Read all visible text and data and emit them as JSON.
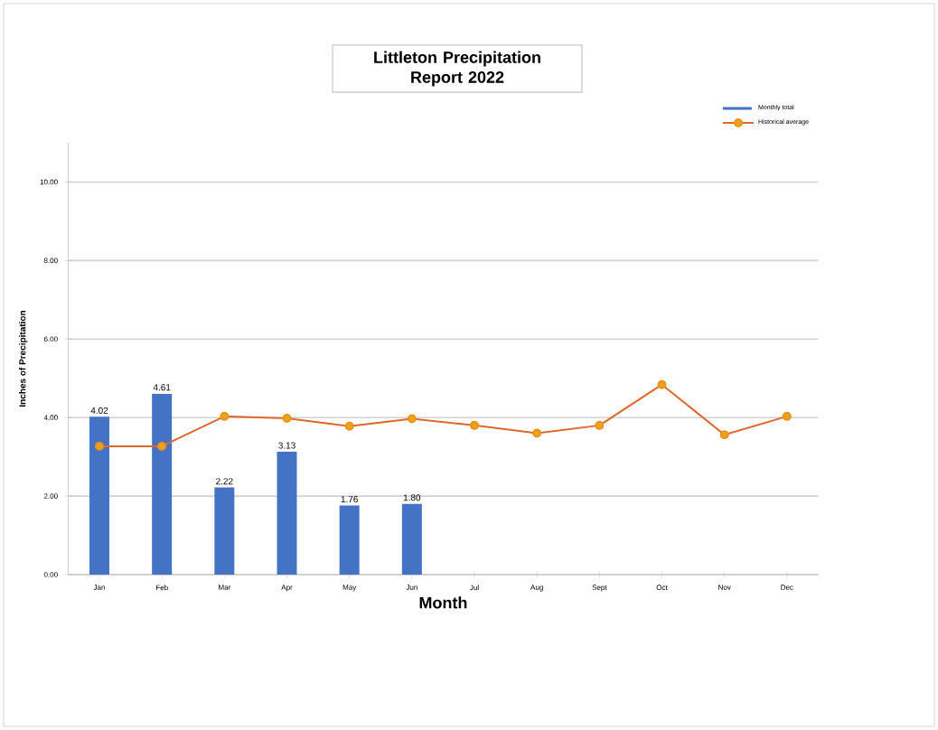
{
  "chart_data": {
    "type": "bar",
    "title": "Littleton Precipitation Report 2022",
    "xlabel": "Month",
    "ylabel": "Inches of Precipitation",
    "categories": [
      "Jan",
      "Feb",
      "Mar",
      "Apr",
      "May",
      "Jun",
      "Jul",
      "Aug",
      "Sept",
      "Oct",
      "Nov",
      "Dec"
    ],
    "series": [
      {
        "name": "Monthly total",
        "color": "#4472c4",
        "values": [
          4.02,
          4.61,
          2.22,
          3.13,
          1.76,
          1.8,
          null,
          null,
          null,
          null,
          null,
          null
        ],
        "value_labels": [
          "4.02",
          "4.61",
          "2.22",
          "3.13",
          "1.76",
          "1.80",
          null,
          null,
          null,
          null,
          null,
          null
        ]
      },
      {
        "name": "Historical average",
        "type": "line",
        "color": "#e0662a",
        "marker": "circle",
        "values": [
          3.27,
          3.27,
          4.03,
          3.98,
          3.78,
          3.97,
          3.8,
          3.6,
          3.8,
          4.84,
          3.56,
          4.03
        ]
      }
    ],
    "ylim": [
      0,
      11
    ],
    "yticks": [
      {
        "value": 0,
        "label": "0.00"
      },
      {
        "value": 2,
        "label": "2.00"
      },
      {
        "value": 4,
        "label": "4.00"
      },
      {
        "value": 6,
        "label": "6.00"
      },
      {
        "value": 8,
        "label": "8.00"
      },
      {
        "value": 10,
        "label": "10.00"
      }
    ],
    "grid": "y",
    "legend": "top right"
  }
}
